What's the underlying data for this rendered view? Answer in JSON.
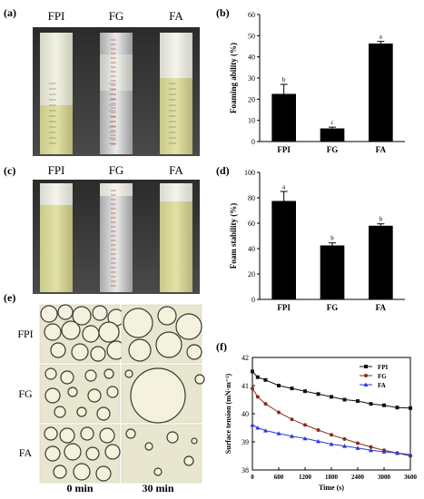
{
  "panel_labels": [
    "(a)",
    "(b)",
    "(c)",
    "(d)",
    "(e)",
    "(f)"
  ],
  "photo_a": {
    "tubes": [
      "FPI",
      "FG",
      "FA"
    ]
  },
  "photo_c": {
    "tubes": [
      "FPI",
      "FG",
      "FA"
    ]
  },
  "micrographs": {
    "rows": [
      "FPI",
      "FG",
      "FA"
    ],
    "cols": [
      "0 min",
      "30 min"
    ]
  },
  "chart_data": [
    {
      "type": "bar",
      "panel": "(b)",
      "categories": [
        "FPI",
        "FG",
        "FA"
      ],
      "values": [
        22.5,
        6.2,
        46.3
      ],
      "errors": [
        4.5,
        0.6,
        1.0
      ],
      "letters": [
        "b",
        "c",
        "a"
      ],
      "ylabel": "Foaming ability (%)",
      "xlabel": "",
      "ylim": [
        0,
        60
      ],
      "yticks": [
        0,
        10,
        20,
        30,
        40,
        50,
        60
      ],
      "color": "#000000"
    },
    {
      "type": "bar",
      "panel": "(d)",
      "categories": [
        "FPI",
        "FG",
        "FA"
      ],
      "values": [
        77.5,
        42.5,
        58.0
      ],
      "errors": [
        7.5,
        2.0,
        1.5
      ],
      "letters": [
        "a",
        "b",
        "b"
      ],
      "ylabel": "Foam stability (%)",
      "xlabel": "",
      "ylim": [
        0,
        100
      ],
      "yticks": [
        0,
        20,
        40,
        60,
        80,
        100
      ],
      "color": "#000000"
    },
    {
      "type": "line",
      "panel": "(f)",
      "xlabel": "Time (s)",
      "ylabel": "Surface tension (mN·m⁻¹)",
      "xlim": [
        0,
        3600
      ],
      "ylim": [
        38,
        42
      ],
      "xticks": [
        0,
        600,
        1200,
        1800,
        2400,
        3000,
        3600
      ],
      "yticks": [
        38,
        39,
        40,
        41,
        42
      ],
      "legend": "top-right",
      "series": [
        {
          "name": "FPI",
          "color": "#111111",
          "marker": "square",
          "x": [
            0,
            120,
            300,
            600,
            900,
            1200,
            1500,
            1800,
            2100,
            2400,
            2700,
            3000,
            3300,
            3600
          ],
          "y": [
            41.5,
            41.3,
            41.2,
            41.0,
            40.9,
            40.8,
            40.7,
            40.6,
            40.5,
            40.45,
            40.35,
            40.3,
            40.22,
            40.2
          ]
        },
        {
          "name": "FG",
          "color": "#8b2d1a",
          "marker": "circle",
          "x": [
            0,
            120,
            300,
            600,
            900,
            1200,
            1500,
            1800,
            2100,
            2400,
            2700,
            3000,
            3300,
            3600
          ],
          "y": [
            40.9,
            40.6,
            40.35,
            40.05,
            39.8,
            39.6,
            39.42,
            39.25,
            39.1,
            38.95,
            38.82,
            38.7,
            38.6,
            38.5
          ]
        },
        {
          "name": "FA",
          "color": "#2a3bd6",
          "marker": "triangle",
          "x": [
            0,
            120,
            300,
            600,
            900,
            1200,
            1500,
            1800,
            2100,
            2400,
            2700,
            3000,
            3300,
            3600
          ],
          "y": [
            39.6,
            39.5,
            39.4,
            39.3,
            39.2,
            39.12,
            39.02,
            38.92,
            38.85,
            38.78,
            38.7,
            38.65,
            38.6,
            38.55
          ]
        }
      ]
    }
  ]
}
